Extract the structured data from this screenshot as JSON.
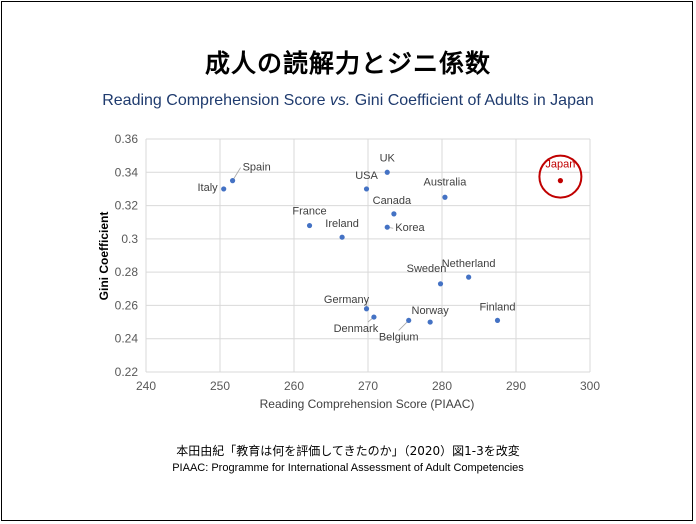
{
  "slide": {
    "title": "成人の読解力とジニ係数",
    "subtitle_pre": "Reading Comprehension Score ",
    "subtitle_vs": "vs.",
    "subtitle_post": " Gini Coefficient of Adults in Japan",
    "source_jp": "本田由紀「教育は何を評価してきたのか」（2020）図1-3を改変",
    "source_en": "PIAAC: Programme for International Assessment of Adult Competencies"
  },
  "colors": {
    "point": "#4472c4",
    "highlight": "#c00000",
    "grid": "#d9d9d9",
    "axis_text": "#595959"
  },
  "chart_data": {
    "type": "scatter",
    "title": "",
    "xlabel": "Reading Comprehension Score (PIAAC)",
    "ylabel": "Gini Coefficient",
    "xlim": [
      240,
      300
    ],
    "ylim": [
      0.22,
      0.36
    ],
    "xticks": [
      "240",
      "250",
      "260",
      "270",
      "280",
      "290",
      "300"
    ],
    "yticks": [
      "0.22",
      "0.24",
      "0.26",
      "0.28",
      "0.3",
      "0.32",
      "0.34",
      "0.36"
    ],
    "grid": true,
    "points": [
      {
        "label": "Japan",
        "x": 296,
        "y": 0.335,
        "highlight": true
      },
      {
        "label": "Finland",
        "x": 287.5,
        "y": 0.251
      },
      {
        "label": "Netherland",
        "x": 283.6,
        "y": 0.277
      },
      {
        "label": "Australia",
        "x": 280.4,
        "y": 0.325
      },
      {
        "label": "Sweden",
        "x": 279.8,
        "y": 0.273
      },
      {
        "label": "Norway",
        "x": 278.4,
        "y": 0.25
      },
      {
        "label": "Belgium",
        "x": 275.5,
        "y": 0.251
      },
      {
        "label": "Canada",
        "x": 273.5,
        "y": 0.315
      },
      {
        "label": "UK",
        "x": 272.6,
        "y": 0.34
      },
      {
        "label": "Korea",
        "x": 272.6,
        "y": 0.307
      },
      {
        "label": "Denmark",
        "x": 270.8,
        "y": 0.253
      },
      {
        "label": "USA",
        "x": 269.8,
        "y": 0.33
      },
      {
        "label": "Germany",
        "x": 269.8,
        "y": 0.258
      },
      {
        "label": "Ireland",
        "x": 266.5,
        "y": 0.301
      },
      {
        "label": "France",
        "x": 262.1,
        "y": 0.308
      },
      {
        "label": "Spain",
        "x": 251.7,
        "y": 0.335
      },
      {
        "label": "Italy",
        "x": 250.5,
        "y": 0.33
      }
    ]
  }
}
